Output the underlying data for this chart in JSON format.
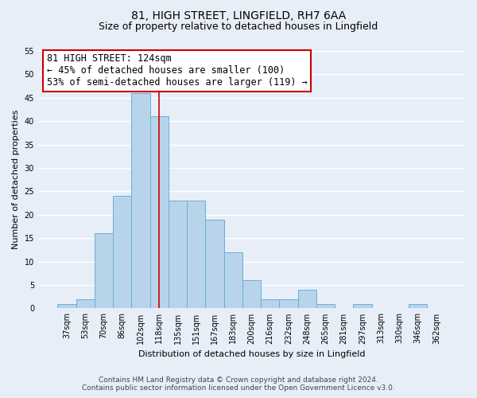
{
  "title": "81, HIGH STREET, LINGFIELD, RH7 6AA",
  "subtitle": "Size of property relative to detached houses in Lingfield",
  "xlabel": "Distribution of detached houses by size in Lingfield",
  "ylabel": "Number of detached properties",
  "bar_labels": [
    "37sqm",
    "53sqm",
    "70sqm",
    "86sqm",
    "102sqm",
    "118sqm",
    "135sqm",
    "151sqm",
    "167sqm",
    "183sqm",
    "200sqm",
    "216sqm",
    "232sqm",
    "248sqm",
    "265sqm",
    "281sqm",
    "297sqm",
    "313sqm",
    "330sqm",
    "346sqm",
    "362sqm"
  ],
  "bar_values": [
    1,
    2,
    16,
    24,
    46,
    41,
    23,
    23,
    19,
    12,
    6,
    2,
    2,
    4,
    1,
    0,
    1,
    0,
    0,
    1,
    0
  ],
  "bar_color": "#b8d4ea",
  "bar_edgecolor": "#6aaed6",
  "vline_x": 5.0,
  "vline_color": "#cc0000",
  "ylim": [
    0,
    55
  ],
  "yticks": [
    0,
    5,
    10,
    15,
    20,
    25,
    30,
    35,
    40,
    45,
    50,
    55
  ],
  "annotation_title": "81 HIGH STREET: 124sqm",
  "annotation_line1": "← 45% of detached houses are smaller (100)",
  "annotation_line2": "53% of semi-detached houses are larger (119) →",
  "annotation_box_facecolor": "#ffffff",
  "annotation_box_edgecolor": "#cc0000",
  "footer_line1": "Contains HM Land Registry data © Crown copyright and database right 2024.",
  "footer_line2": "Contains public sector information licensed under the Open Government Licence v3.0.",
  "background_color": "#e8eef8",
  "grid_color": "#ffffff",
  "title_fontsize": 10,
  "subtitle_fontsize": 9,
  "axis_label_fontsize": 8,
  "tick_fontsize": 7,
  "footer_fontsize": 6.5
}
